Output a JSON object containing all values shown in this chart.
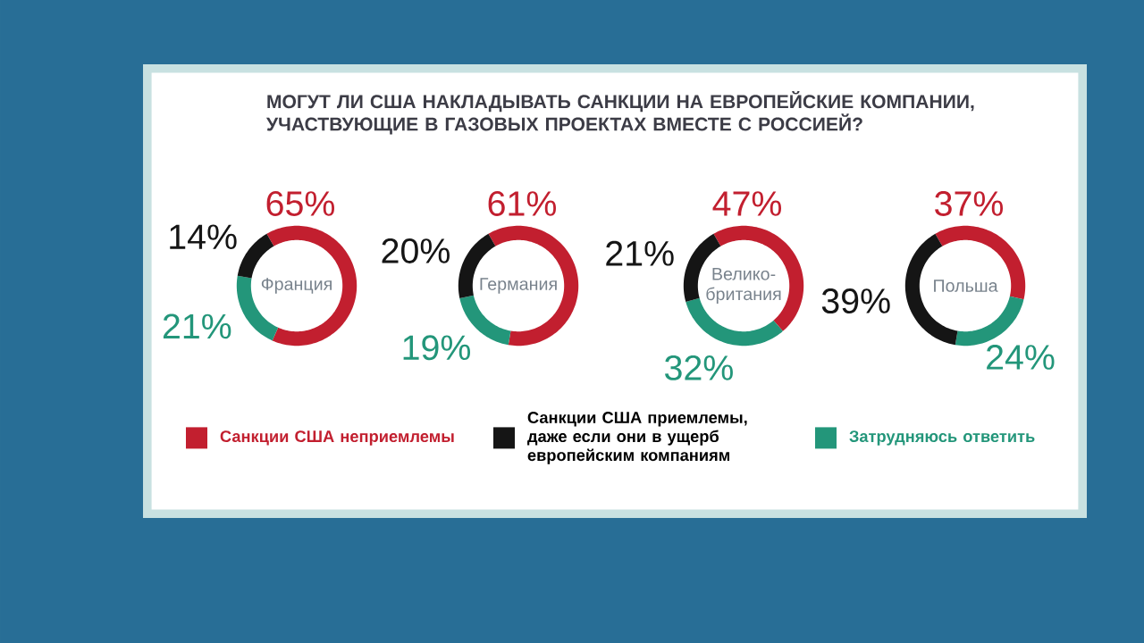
{
  "chart_data": [
    {
      "type": "donut",
      "title": "Франция",
      "annotations": [
        "МОГУТ ЛИ США НАКЛАДЫВАТЬ САНКЦИИ НА ЕВРОПЕЙСКИЕ КОМПАНИИ, УЧАСТВУЮЩИЕ В ГАЗОВЫХ ПРОЕКТАХ ВМЕСТЕ С РОССИЕЙ?"
      ],
      "categories": [
        "Санкции США неприемлемы",
        "Санкции США приемлемы, даже если они в ущерб европейским компаниям",
        "Затрудняюсь ответить"
      ],
      "values": [
        65,
        14,
        21
      ],
      "value_labels": [
        "65%",
        "14%",
        "21%"
      ],
      "colors": [
        "#c21f2f",
        "#151515",
        "#23967a"
      ],
      "legend": "bottom"
    },
    {
      "type": "donut",
      "title": "Германия",
      "categories": [
        null,
        null,
        null
      ],
      "values": [
        61,
        20,
        19
      ],
      "value_labels": [
        "61%",
        "20%",
        "19%"
      ],
      "colors": [
        "#c21f2f",
        "#151515",
        "#23967a"
      ]
    },
    {
      "type": "donut",
      "title": "Велико-британия",
      "categories": [
        null,
        null,
        null
      ],
      "values": [
        47,
        21,
        32
      ],
      "value_labels": [
        "47%",
        "21%",
        "32%"
      ],
      "colors": [
        "#c21f2f",
        "#151515",
        "#23967a"
      ]
    },
    {
      "type": "donut",
      "title": "Польша",
      "categories": [
        null,
        null,
        null
      ],
      "values": [
        37,
        39,
        24
      ],
      "value_labels": [
        "37%",
        "39%",
        "24%"
      ],
      "colors": [
        "#c21f2f",
        "#151515",
        "#23967a"
      ]
    }
  ]
}
